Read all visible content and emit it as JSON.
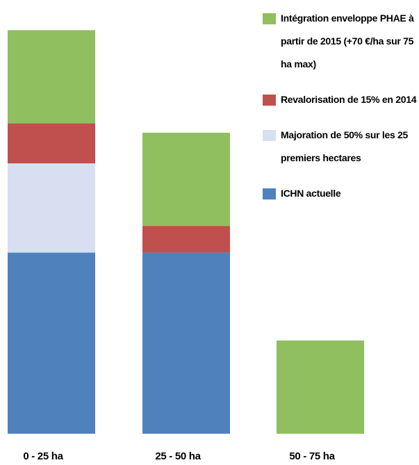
{
  "chart_data": {
    "type": "stacked_bar",
    "categories": [
      "0 - 25 ha",
      "25 - 50 ha",
      "50 - 75 ha"
    ],
    "series": [
      {
        "name": "ICHN actuelle",
        "color": "#4f81bd",
        "values": [
          136,
          136,
          0
        ]
      },
      {
        "name": "Majoration de 50% sur les 25 premiers hectares",
        "color": "#d7dff0",
        "values": [
          67,
          0,
          0
        ]
      },
      {
        "name": "Revalorisation de 15% en 2014",
        "color": "#c0504d",
        "values": [
          30,
          20,
          0
        ]
      },
      {
        "name": "Intégration enveloppe PHAE à partir de 2015 (+70 €/ha sur 75 ha max)",
        "color": "#8fbf5e",
        "values": [
          70,
          70,
          70
        ]
      }
    ],
    "ylim": [
      0,
      310
    ]
  }
}
